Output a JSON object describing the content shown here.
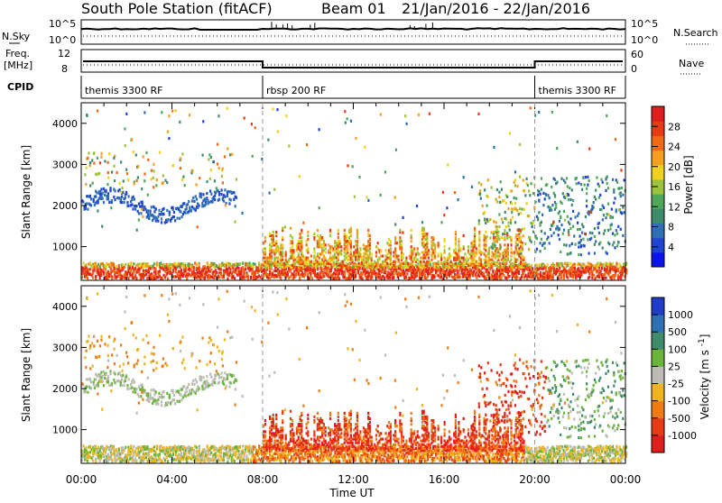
{
  "header": {
    "station": "South Pole Station (fitACF)",
    "beam": "Beam 01",
    "date_range": "21/Jan/2016 - 22/Jan/2016"
  },
  "top_panels": {
    "nsky_label": "N.Sky",
    "nsky_ticks": [
      "10^5",
      "10^0"
    ],
    "nsearch_label": "N.Search",
    "nsearch_ticks": [
      "10^5",
      "10^0"
    ],
    "freq_label": "Freq.",
    "freq_unit": "[MHz]",
    "freq_ticks": [
      "12",
      "8"
    ],
    "nave_label": "Nave",
    "nave_ticks": [
      "60",
      "0"
    ],
    "cpid_label": "CPID",
    "cpid_segments": [
      {
        "name": "themis 3300 RF",
        "start_hour": 0,
        "end_hour": 8
      },
      {
        "name": "rbsp 200 RF",
        "start_hour": 8,
        "end_hour": 20
      },
      {
        "name": "themis 3300 RF",
        "start_hour": 20,
        "end_hour": 24
      }
    ]
  },
  "chart_data": [
    {
      "type": "heatmap",
      "ylabel": "Slant Range [km]",
      "xlim": [
        0,
        24
      ],
      "ylim": [
        180,
        4500
      ],
      "yticks": [
        "1000",
        "2000",
        "3000",
        "4000"
      ],
      "colorbar": {
        "label": "Power [dB]",
        "ticks": [
          "4",
          "8",
          "12",
          "16",
          "20",
          "24",
          "28"
        ],
        "range": [
          0,
          30
        ],
        "colors": [
          "#0a14e6",
          "#1e46d2",
          "#2f6fb4",
          "#3f8c6a",
          "#4ea85a",
          "#9cc43a",
          "#f0d21e",
          "#f5a01e",
          "#f06a14",
          "#e83a14",
          "#e01e1e"
        ]
      }
    },
    {
      "type": "heatmap",
      "ylabel": "Slant Range [km]",
      "xlim": [
        0,
        24
      ],
      "ylim": [
        180,
        4500
      ],
      "yticks": [
        "1000",
        "2000",
        "3000",
        "4000"
      ],
      "colorbar": {
        "label": "Velocity [m s^-1]",
        "ticks": [
          "1000",
          "500",
          "100",
          "25",
          "-25",
          "-100",
          "-500",
          "-1000"
        ],
        "colors": [
          "#1e3cc8",
          "#2f6fb4",
          "#3f8c6a",
          "#6ab43a",
          "#bcbcb4",
          "#f0b41e",
          "#f07a14",
          "#e83a14",
          "#e01e1e"
        ]
      }
    }
  ],
  "xaxis": {
    "label": "Time UT",
    "ticks": [
      "00:00",
      "04:00",
      "08:00",
      "12:00",
      "16:00",
      "20:00",
      "00:00"
    ]
  }
}
